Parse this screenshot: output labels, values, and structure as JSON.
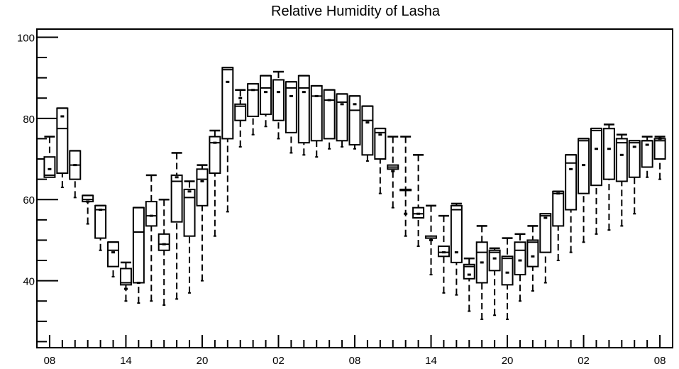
{
  "chart_data": {
    "type": "boxplot",
    "title": "Relative Humidity of Lasha",
    "xlabel": "",
    "ylabel": "",
    "ylim": [
      23.5,
      102
    ],
    "y_ticks_major": [
      40,
      60,
      80,
      100
    ],
    "y_tick_labels": [
      "40",
      "60",
      "80",
      "100"
    ],
    "x_tick_labels": [
      "08",
      "14",
      "20",
      "02",
      "08",
      "14",
      "20",
      "02",
      "08"
    ],
    "x_tick_hours_offset": [
      0,
      6,
      12,
      18,
      24,
      30,
      36,
      42,
      48
    ],
    "x_range_hours_offset": [
      -1,
      49
    ],
    "grid": false,
    "legend": "none",
    "series": [
      {
        "hour": 0,
        "min": 65.5,
        "q1": 65.5,
        "median": 66.0,
        "q3": 70.5,
        "max": 75.5,
        "mean": 67.5
      },
      {
        "hour": 1,
        "min": 63.0,
        "q1": 66.5,
        "median": 77.5,
        "q3": 82.5,
        "max": 82.5,
        "mean": 80.5
      },
      {
        "hour": 2,
        "min": 60.5,
        "q1": 65.0,
        "median": 68.5,
        "q3": 72.0,
        "max": 72.0,
        "mean": 68.5
      },
      {
        "hour": 3,
        "min": 54.0,
        "q1": 59.5,
        "median": 60.0,
        "q3": 61.0,
        "max": 61.0,
        "mean": 59.5
      },
      {
        "hour": 4,
        "min": 47.5,
        "q1": 50.5,
        "median": 57.5,
        "q3": 58.5,
        "max": 58.5,
        "mean": 57.5
      },
      {
        "hour": 5,
        "min": 41.0,
        "q1": 43.5,
        "median": 47.5,
        "q3": 49.5,
        "max": 49.5,
        "mean": 47.0
      },
      {
        "hour": 6,
        "min": 35.0,
        "q1": 39.0,
        "median": 39.5,
        "q3": 43.0,
        "max": 44.5,
        "mean": 38.0
      },
      {
        "hour": 7,
        "min": 34.5,
        "q1": 39.5,
        "median": 52.0,
        "q3": 58.0,
        "max": 58.0,
        "mean": 39.5
      },
      {
        "hour": 8,
        "min": 35.0,
        "q1": 53.5,
        "median": 56.0,
        "q3": 59.5,
        "max": 66.0,
        "mean": 56.0
      },
      {
        "hour": 9,
        "min": 34.0,
        "q1": 47.5,
        "median": 49.0,
        "q3": 51.5,
        "max": 60.0,
        "mean": 49.0
      },
      {
        "hour": 10,
        "min": 35.5,
        "q1": 54.5,
        "median": 64.5,
        "q3": 66.0,
        "max": 71.5,
        "mean": 65.5
      },
      {
        "hour": 11,
        "min": 37.0,
        "q1": 51.0,
        "median": 60.5,
        "q3": 62.5,
        "max": 64.5,
        "mean": 62.0
      },
      {
        "hour": 12,
        "min": 40.0,
        "q1": 58.5,
        "median": 65.0,
        "q3": 67.5,
        "max": 68.5,
        "mean": 64.5
      },
      {
        "hour": 13,
        "min": 51.0,
        "q1": 66.5,
        "median": 74.0,
        "q3": 75.5,
        "max": 77.0,
        "mean": 74.0
      },
      {
        "hour": 14,
        "min": 57.0,
        "q1": 75.0,
        "median": 92.0,
        "q3": 92.5,
        "max": 92.5,
        "mean": 89.0
      },
      {
        "hour": 15,
        "min": 73.0,
        "q1": 79.5,
        "median": 83.0,
        "q3": 83.5,
        "max": 87.0,
        "mean": 85.0
      },
      {
        "hour": 16,
        "min": 76.0,
        "q1": 80.5,
        "median": 87.0,
        "q3": 88.5,
        "max": 88.5,
        "mean": 87.0
      },
      {
        "hour": 17,
        "min": 78.0,
        "q1": 81.0,
        "median": 87.5,
        "q3": 90.5,
        "max": 90.5,
        "mean": 86.5
      },
      {
        "hour": 18,
        "min": 75.0,
        "q1": 79.5,
        "median": 89.5,
        "q3": 89.5,
        "max": 91.5,
        "mean": 86.5
      },
      {
        "hour": 19,
        "min": 71.5,
        "q1": 76.5,
        "median": 87.5,
        "q3": 89.0,
        "max": 89.0,
        "mean": 85.5
      },
      {
        "hour": 20,
        "min": 71.0,
        "q1": 74.0,
        "median": 87.5,
        "q3": 90.5,
        "max": 90.5,
        "mean": 86.5
      },
      {
        "hour": 21,
        "min": 70.5,
        "q1": 74.5,
        "median": 85.5,
        "q3": 88.0,
        "max": 88.0,
        "mean": 85.5
      },
      {
        "hour": 22,
        "min": 72.5,
        "q1": 75.0,
        "median": 84.5,
        "q3": 87.0,
        "max": 87.0,
        "mean": 84.5
      },
      {
        "hour": 23,
        "min": 73.0,
        "q1": 74.5,
        "median": 84.0,
        "q3": 86.0,
        "max": 86.0,
        "mean": 83.5
      },
      {
        "hour": 24,
        "min": 72.5,
        "q1": 73.5,
        "median": 82.0,
        "q3": 85.5,
        "max": 85.5,
        "mean": 83.5
      },
      {
        "hour": 25,
        "min": 69.5,
        "q1": 71.0,
        "median": 79.5,
        "q3": 83.0,
        "max": 83.0,
        "mean": 79.0
      },
      {
        "hour": 26,
        "min": 61.5,
        "q1": 70.0,
        "median": 76.5,
        "q3": 77.5,
        "max": 77.5,
        "mean": 76.0
      },
      {
        "hour": 27,
        "min": 58.0,
        "q1": 67.5,
        "median": 68.0,
        "q3": 68.5,
        "max": 75.5,
        "mean": 67.0
      },
      {
        "hour": 28,
        "min": 51.0,
        "q1": 62.5,
        "median": 62.5,
        "q3": 62.5,
        "max": 75.5,
        "mean": 56.5
      },
      {
        "hour": 29,
        "min": 48.5,
        "q1": 55.5,
        "median": 56.5,
        "q3": 58.0,
        "max": 71.0,
        "mean": 56.5
      },
      {
        "hour": 30,
        "min": 41.5,
        "q1": 50.5,
        "median": 50.5,
        "q3": 51.0,
        "max": 58.5,
        "mean": 50.0
      },
      {
        "hour": 31,
        "min": 37.0,
        "q1": 46.0,
        "median": 47.0,
        "q3": 48.5,
        "max": 56.0,
        "mean": 47.0
      },
      {
        "hour": 32,
        "min": 36.5,
        "q1": 44.5,
        "median": 57.5,
        "q3": 58.5,
        "max": 59.0,
        "mean": 47.0
      },
      {
        "hour": 33,
        "min": 32.5,
        "q1": 40.5,
        "median": 43.5,
        "q3": 44.0,
        "max": 45.5,
        "mean": 41.5
      },
      {
        "hour": 34,
        "min": 30.5,
        "q1": 39.5,
        "median": 47.0,
        "q3": 49.5,
        "max": 53.5,
        "mean": 44.5
      },
      {
        "hour": 35,
        "min": 31.5,
        "q1": 42.5,
        "median": 47.0,
        "q3": 47.5,
        "max": 48.0,
        "mean": 45.5
      },
      {
        "hour": 36,
        "min": 30.5,
        "q1": 39.0,
        "median": 45.5,
        "q3": 46.0,
        "max": 50.5,
        "mean": 42.0
      },
      {
        "hour": 37,
        "min": 35.0,
        "q1": 41.5,
        "median": 47.5,
        "q3": 49.5,
        "max": 51.5,
        "mean": 45.0
      },
      {
        "hour": 38,
        "min": 37.5,
        "q1": 43.5,
        "median": 49.5,
        "q3": 50.0,
        "max": 53.5,
        "mean": 46.0
      },
      {
        "hour": 39,
        "min": 39.5,
        "q1": 47.0,
        "median": 56.0,
        "q3": 56.5,
        "max": 56.5,
        "mean": 55.5
      },
      {
        "hour": 40,
        "min": 45.0,
        "q1": 53.5,
        "median": 61.5,
        "q3": 62.0,
        "max": 62.0,
        "mean": 61.5
      },
      {
        "hour": 41,
        "min": 47.0,
        "q1": 57.5,
        "median": 69.0,
        "q3": 71.0,
        "max": 71.0,
        "mean": 67.5
      },
      {
        "hour": 42,
        "min": 49.5,
        "q1": 61.5,
        "median": 74.5,
        "q3": 75.0,
        "max": 75.0,
        "mean": 68.5
      },
      {
        "hour": 43,
        "min": 51.5,
        "q1": 63.5,
        "median": 77.0,
        "q3": 77.5,
        "max": 77.5,
        "mean": 72.5
      },
      {
        "hour": 44,
        "min": 52.5,
        "q1": 65.0,
        "median": 77.5,
        "q3": 77.5,
        "max": 78.5,
        "mean": 72.5
      },
      {
        "hour": 45,
        "min": 53.5,
        "q1": 64.5,
        "median": 74.0,
        "q3": 75.0,
        "max": 76.0,
        "mean": 71.0
      },
      {
        "hour": 46,
        "min": 56.5,
        "q1": 65.5,
        "median": 74.0,
        "q3": 74.5,
        "max": 74.5,
        "mean": 73.0
      },
      {
        "hour": 47,
        "min": 65.5,
        "q1": 68.0,
        "median": 74.5,
        "q3": 74.5,
        "max": 75.5,
        "mean": 73.5
      },
      {
        "hour": 48,
        "min": 65.0,
        "q1": 70.0,
        "median": 74.5,
        "q3": 75.0,
        "max": 75.5,
        "mean": 75.0
      }
    ]
  }
}
